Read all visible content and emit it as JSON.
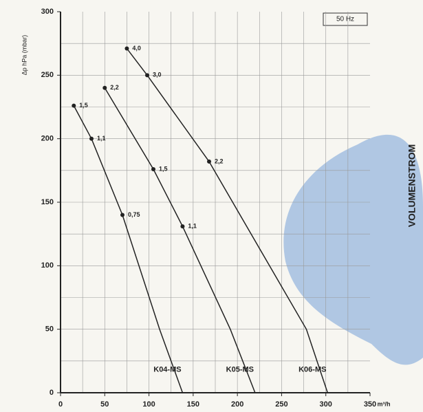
{
  "chart_data": {
    "type": "line",
    "y_axis_label": "Δp hPa (mbar)",
    "x_unit_label": "m³/h",
    "frequency_label": "50 Hz",
    "side_label": "VOLUMENSTROM",
    "xlim": [
      0,
      350
    ],
    "xticks": [
      0,
      50,
      100,
      150,
      200,
      250,
      300,
      350
    ],
    "ylim": [
      0,
      300
    ],
    "yticks": [
      0,
      50,
      100,
      150,
      200,
      250,
      300
    ],
    "grid": true,
    "grid_step": 25,
    "series": [
      {
        "name": "K04-MS",
        "color": "#222222",
        "x": [
          15,
          35,
          70,
          112,
          138
        ],
        "values": [
          226,
          200,
          140,
          50,
          0
        ],
        "point_labels": [
          "1,5",
          "1,1",
          "0,75",
          null,
          null
        ]
      },
      {
        "name": "K05-MS",
        "color": "#222222",
        "x": [
          50,
          105,
          138,
          192,
          220
        ],
        "values": [
          240,
          176,
          131,
          50,
          0
        ],
        "point_labels": [
          "2,2",
          "1,5",
          "1,1",
          null,
          null
        ]
      },
      {
        "name": "K06-MS",
        "color": "#222222",
        "x": [
          75,
          98,
          168,
          278,
          302
        ],
        "values": [
          271,
          250,
          182,
          50,
          0
        ],
        "point_labels": [
          "4,0",
          "3,0",
          "2,2",
          null,
          null
        ]
      }
    ]
  }
}
